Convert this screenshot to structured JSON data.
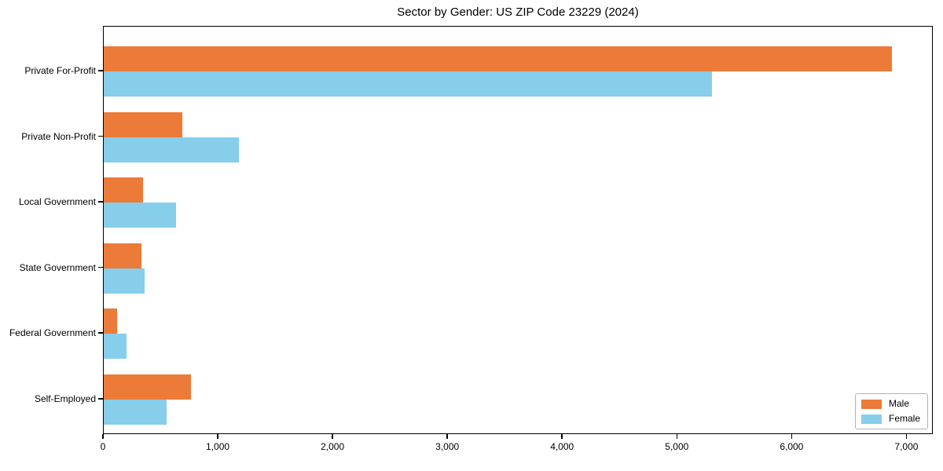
{
  "title": "Sector by Gender: US ZIP Code 23229 (2024)",
  "chart_data": {
    "type": "bar",
    "orientation": "horizontal",
    "title": "Sector by Gender: US ZIP Code 23229 (2024)",
    "categories": [
      "Private For-Profit",
      "Private Non-Profit",
      "Local Government",
      "State Government",
      "Federal Government",
      "Self-Employed"
    ],
    "series": [
      {
        "name": "Male",
        "color": "#ec7a39",
        "values": [
          6870,
          685,
          340,
          330,
          115,
          760
        ]
      },
      {
        "name": "Female",
        "color": "#87ceeb",
        "values": [
          5300,
          1180,
          630,
          355,
          200,
          550
        ]
      }
    ],
    "xlabel": "",
    "ylabel": "",
    "xlim": [
      0,
      7230
    ],
    "xticks": [
      0,
      1000,
      2000,
      3000,
      4000,
      5000,
      6000,
      7000
    ],
    "xtick_labels": [
      "0",
      "1,000",
      "2,000",
      "3,000",
      "4,000",
      "5,000",
      "6,000",
      "7,000"
    ],
    "grid": false,
    "legend_position": "lower right"
  },
  "legend": {
    "items": [
      {
        "label": "Male",
        "color": "#ec7a39"
      },
      {
        "label": "Female",
        "color": "#87ceeb"
      }
    ]
  }
}
